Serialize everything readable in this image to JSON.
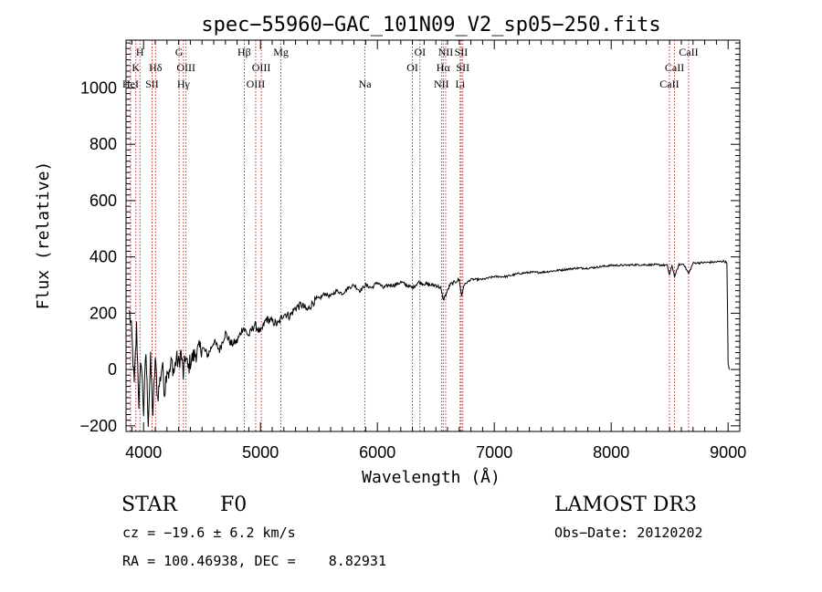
{
  "chart_data": {
    "type": "line",
    "title": "spec−55960−GAC_101N09_V2_sp05−250.fits",
    "xlabel": "Wavelength (Å)",
    "ylabel": "Flux (relative)",
    "xlim": [
      3850,
      9100
    ],
    "ylim": [
      -220,
      1170
    ],
    "xticks": [
      4000,
      5000,
      6000,
      7000,
      8000,
      9000
    ],
    "yticks": [
      -200,
      0,
      200,
      400,
      600,
      800,
      1000
    ],
    "tick_labels": {
      "x": [
        "4000",
        "5000",
        "6000",
        "7000",
        "8000",
        "9000"
      ],
      "y": [
        "−200",
        "0",
        "200",
        "400",
        "600",
        "800",
        "1000"
      ]
    },
    "spectral_lines": [
      {
        "wavelength": 3934,
        "label": "K",
        "row": 1
      },
      {
        "wavelength": 3969,
        "label": "H",
        "row": 0
      },
      {
        "wavelength": 3889,
        "label": "HeI",
        "row": 2
      },
      {
        "wavelength": 4072,
        "label": "SII",
        "row": 2
      },
      {
        "wavelength": 4102,
        "label": "Hδ",
        "row": 1
      },
      {
        "wavelength": 4304,
        "label": "G",
        "row": 0
      },
      {
        "wavelength": 4341,
        "label": "Hγ",
        "row": 2
      },
      {
        "wavelength": 4363,
        "label": "OIII",
        "row": 1
      },
      {
        "wavelength": 4861,
        "label": "Hβ",
        "row": 0
      },
      {
        "wavelength": 4959,
        "label": "OIII",
        "row": 2
      },
      {
        "wavelength": 5007,
        "label": "OIII",
        "row": 1
      },
      {
        "wavelength": 5175,
        "label": "Mg",
        "row": 0
      },
      {
        "wavelength": 5894,
        "label": "Na",
        "row": 2
      },
      {
        "wavelength": 6300,
        "label": "OI",
        "row": 1
      },
      {
        "wavelength": 6364,
        "label": "OI",
        "row": 0
      },
      {
        "wavelength": 6548,
        "label": "NII",
        "row": 2
      },
      {
        "wavelength": 6563,
        "label": "Hα",
        "row": 1
      },
      {
        "wavelength": 6584,
        "label": "NII",
        "row": 0
      },
      {
        "wavelength": 6708,
        "label": "Li",
        "row": 2
      },
      {
        "wavelength": 6717,
        "label": "SII",
        "row": 0
      },
      {
        "wavelength": 6731,
        "label": "SII",
        "row": 1
      },
      {
        "wavelength": 8498,
        "label": "CaII",
        "row": 2
      },
      {
        "wavelength": 8542,
        "label": "CaII",
        "row": 1
      },
      {
        "wavelength": 8662,
        "label": "CaII",
        "row": 0
      }
    ],
    "series": [
      {
        "name": "flux",
        "color": "#000000",
        "x": [
          3880,
          3900,
          3920,
          3940,
          3960,
          3980,
          4000,
          4020,
          4040,
          4060,
          4080,
          4100,
          4120,
          4140,
          4160,
          4180,
          4200,
          4220,
          4240,
          4260,
          4280,
          4300,
          4320,
          4340,
          4360,
          4380,
          4400,
          4450,
          4500,
          4550,
          4600,
          4650,
          4700,
          4750,
          4800,
          4850,
          4900,
          4950,
          5000,
          5050,
          5100,
          5150,
          5200,
          5250,
          5300,
          5350,
          5400,
          5450,
          5500,
          5550,
          5600,
          5650,
          5700,
          5750,
          5800,
          5850,
          5900,
          5950,
          6000,
          6050,
          6100,
          6150,
          6200,
          6250,
          6300,
          6350,
          6400,
          6450,
          6500,
          6540,
          6563,
          6580,
          6620,
          6660,
          6700,
          6720,
          6740,
          6800,
          6900,
          7000,
          7100,
          7200,
          7300,
          7400,
          7500,
          7600,
          7700,
          7800,
          7900,
          8000,
          8100,
          8200,
          8300,
          8400,
          8480,
          8498,
          8520,
          8542,
          8580,
          8620,
          8662,
          8700,
          8800,
          8900,
          8960,
          8990,
          9000,
          9010
        ],
        "values": [
          200,
          120,
          -60,
          150,
          -120,
          40,
          -150,
          60,
          -180,
          30,
          -160,
          40,
          -100,
          -40,
          20,
          -80,
          10,
          -20,
          30,
          -10,
          40,
          20,
          60,
          -20,
          50,
          0,
          30,
          60,
          80,
          50,
          100,
          70,
          130,
          90,
          100,
          150,
          120,
          160,
          130,
          180,
          170,
          160,
          200,
          190,
          220,
          230,
          210,
          240,
          250,
          270,
          260,
          280,
          270,
          290,
          300,
          280,
          300,
          290,
          310,
          290,
          300,
          300,
          310,
          300,
          290,
          310,
          305,
          300,
          300,
          290,
          250,
          260,
          300,
          310,
          320,
          260,
          300,
          320,
          320,
          330,
          330,
          340,
          345,
          345,
          350,
          355,
          360,
          360,
          365,
          370,
          370,
          372,
          372,
          372,
          370,
          335,
          370,
          330,
          372,
          375,
          340,
          378,
          380,
          382,
          385,
          380,
          20,
          0
        ]
      }
    ]
  },
  "info": {
    "object_class": "STAR",
    "subclass": "F0",
    "survey": "LAMOST DR3",
    "redshift": "cz = −19.6 ± 6.2 km/s",
    "obs_date": "Obs−Date: 20120202",
    "coords": "RA = 100.46938, DEC =    8.82931"
  }
}
